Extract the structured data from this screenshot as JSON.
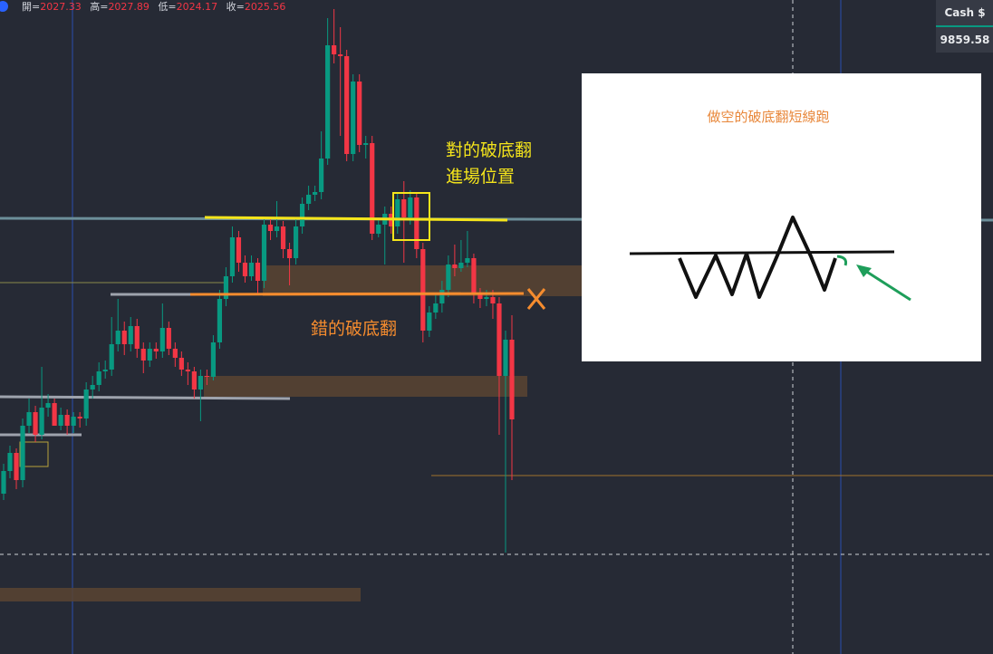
{
  "header": {
    "open_label": "開=",
    "open": "2027.33",
    "high_label": "高=",
    "high": "2027.89",
    "low_label": "低=",
    "low": "2024.17",
    "close_label": "收=",
    "close": "2025.56"
  },
  "price_panel": {
    "label": "Cash $",
    "value": "9859.58"
  },
  "annotations": {
    "correct_line1": "對的破底翻",
    "correct_line2": "進場位置",
    "wrong": "錯的破底翻",
    "inset_title": "做空的破底翻短線跑"
  },
  "chart_data": {
    "type": "candlestick",
    "ylim": [
      2000,
      2072.2
    ],
    "up_color": "#089981",
    "down_color": "#f23645",
    "ohlc": [
      [
        2017.7,
        2021.0,
        2017.0,
        2020.2
      ],
      [
        2020.2,
        2023.0,
        2019.4,
        2022.2
      ],
      [
        2022.2,
        2022.7,
        2018.2,
        2019.2
      ],
      [
        2019.2,
        2026.0,
        2018.4,
        2025.2
      ],
      [
        2025.2,
        2028.2,
        2024.4,
        2026.7
      ],
      [
        2026.7,
        2027.4,
        2023.4,
        2024.2
      ],
      [
        2024.2,
        2031.7,
        2023.7,
        2027.2
      ],
      [
        2027.2,
        2028.7,
        2026.2,
        2027.7
      ],
      [
        2027.7,
        2028.2,
        2025.4,
        2025.2
      ],
      [
        2025.2,
        2027.2,
        2024.7,
        2026.4
      ],
      [
        2026.4,
        2027.0,
        2024.2,
        2025.2
      ],
      [
        2025.2,
        2026.7,
        2024.4,
        2026.2
      ],
      [
        2026.2,
        2026.7,
        2025.0,
        2026.0
      ],
      [
        2026.0,
        2030.0,
        2025.2,
        2029.2
      ],
      [
        2029.2,
        2030.7,
        2028.2,
        2029.7
      ],
      [
        2029.7,
        2032.2,
        2029.0,
        2031.2
      ],
      [
        2031.2,
        2032.4,
        2030.4,
        2031.4
      ],
      [
        2031.4,
        2037.2,
        2030.7,
        2034.2
      ],
      [
        2034.2,
        2039.2,
        2033.4,
        2035.7
      ],
      [
        2035.7,
        2036.7,
        2033.0,
        2034.2
      ],
      [
        2034.2,
        2037.2,
        2033.4,
        2036.2
      ],
      [
        2036.2,
        2037.0,
        2032.7,
        2033.7
      ],
      [
        2033.7,
        2034.4,
        2031.0,
        2032.4
      ],
      [
        2032.4,
        2034.4,
        2031.7,
        2033.7
      ],
      [
        2033.7,
        2034.4,
        2032.6,
        2033.4
      ],
      [
        2033.4,
        2038.7,
        2032.7,
        2036.0
      ],
      [
        2036.0,
        2036.7,
        2033.0,
        2033.7
      ],
      [
        2033.7,
        2034.4,
        2031.7,
        2032.7
      ],
      [
        2032.7,
        2033.4,
        2030.7,
        2031.4
      ],
      [
        2031.4,
        2032.2,
        2029.7,
        2031.2
      ],
      [
        2031.2,
        2031.7,
        2028.2,
        2029.2
      ],
      [
        2029.2,
        2031.4,
        2025.7,
        2030.7
      ],
      [
        2030.7,
        2031.4,
        2029.7,
        2030.6
      ],
      [
        2030.6,
        2035.2,
        2030.2,
        2034.4
      ],
      [
        2034.4,
        2040.2,
        2033.7,
        2039.2
      ],
      [
        2039.2,
        2042.7,
        2038.4,
        2041.7
      ],
      [
        2041.7,
        2047.2,
        2041.0,
        2046.0
      ],
      [
        2046.0,
        2046.7,
        2042.2,
        2043.2
      ],
      [
        2043.2,
        2044.0,
        2041.0,
        2041.7
      ],
      [
        2041.7,
        2044.0,
        2041.2,
        2043.2
      ],
      [
        2043.2,
        2043.7,
        2039.7,
        2041.2
      ],
      [
        2041.2,
        2048.2,
        2040.4,
        2047.4
      ],
      [
        2047.4,
        2048.2,
        2045.7,
        2046.7
      ],
      [
        2046.7,
        2050.0,
        2046.0,
        2047.2
      ],
      [
        2047.2,
        2047.8,
        2043.7,
        2044.7
      ],
      [
        2044.7,
        2045.4,
        2040.7,
        2043.7
      ],
      [
        2043.7,
        2048.0,
        2043.0,
        2047.2
      ],
      [
        2047.2,
        2050.4,
        2046.4,
        2049.7
      ],
      [
        2049.7,
        2051.7,
        2049.0,
        2050.7
      ],
      [
        2050.7,
        2051.7,
        2050.0,
        2051.0
      ],
      [
        2051.0,
        2057.7,
        2050.2,
        2054.7
      ],
      [
        2054.7,
        2070.2,
        2054.0,
        2067.2
      ],
      [
        2067.2,
        2071.2,
        2065.2,
        2066.2
      ],
      [
        2066.2,
        2069.2,
        2057.2,
        2066.0
      ],
      [
        2066.0,
        2066.7,
        2054.4,
        2055.2
      ],
      [
        2055.2,
        2064.0,
        2054.4,
        2063.2
      ],
      [
        2063.2,
        2064.0,
        2055.4,
        2056.2
      ],
      [
        2056.2,
        2057.2,
        2054.7,
        2056.4
      ],
      [
        2056.4,
        2057.2,
        2045.7,
        2046.4
      ],
      [
        2046.4,
        2048.2,
        2046.0,
        2047.4
      ],
      [
        2047.4,
        2049.4,
        2043.0,
        2048.6
      ],
      [
        2048.6,
        2049.4,
        2046.4,
        2047.2
      ],
      [
        2047.2,
        2051.0,
        2046.4,
        2050.2
      ],
      [
        2050.2,
        2052.2,
        2043.2,
        2048.2
      ],
      [
        2048.2,
        2051.2,
        2047.4,
        2050.4
      ],
      [
        2050.4,
        2051.0,
        2043.7,
        2044.7
      ],
      [
        2044.7,
        2045.4,
        2034.4,
        2035.7
      ],
      [
        2035.7,
        2038.4,
        2035.0,
        2037.7
      ],
      [
        2037.7,
        2039.7,
        2037.0,
        2038.7
      ],
      [
        2038.7,
        2041.2,
        2037.7,
        2040.2
      ],
      [
        2040.2,
        2044.0,
        2039.4,
        2043.0
      ],
      [
        2043.0,
        2045.2,
        2041.7,
        2042.6
      ],
      [
        2042.6,
        2045.7,
        2042.2,
        2043.2
      ],
      [
        2043.2,
        2046.7,
        2042.7,
        2043.7
      ],
      [
        2043.7,
        2044.2,
        2038.7,
        2039.7
      ],
      [
        2039.7,
        2040.4,
        2038.2,
        2039.2
      ],
      [
        2039.2,
        2040.2,
        2038.4,
        2039.4
      ],
      [
        2039.4,
        2040.2,
        2037.0,
        2038.7
      ],
      [
        2038.7,
        2039.4,
        2024.2,
        2030.7
      ],
      [
        2030.7,
        2035.7,
        2011.2,
        2034.7
      ],
      [
        2034.7,
        2037.4,
        2019.2,
        2025.9
      ]
    ]
  }
}
